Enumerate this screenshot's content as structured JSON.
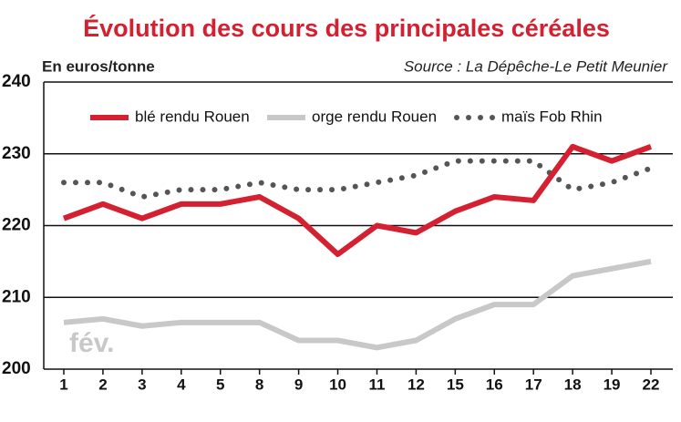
{
  "chart_data": {
    "type": "line",
    "title": "Évolution des cours des principales céréales",
    "y_label": "En euros/tonne",
    "source": "Source : La Dépêche-Le Petit Meunier",
    "annotation": "fév.",
    "categories": [
      "1",
      "2",
      "3",
      "4",
      "5",
      "8",
      "9",
      "10",
      "11",
      "12",
      "15",
      "16",
      "17",
      "18",
      "19",
      "22"
    ],
    "series": [
      {
        "name": "blé rendu Rouen",
        "color": "#d42030",
        "style": "solid",
        "values": [
          221,
          223,
          221,
          223,
          223,
          224,
          221,
          216,
          220,
          219,
          222,
          224,
          223.5,
          231,
          229,
          231
        ]
      },
      {
        "name": "orge rendu Rouen",
        "color": "#c8c8c8",
        "style": "solid",
        "values": [
          206.5,
          207,
          206,
          206.5,
          206.5,
          206.5,
          204,
          204,
          203,
          204,
          207,
          209,
          209,
          213,
          214,
          215
        ]
      },
      {
        "name": "maïs Fob Rhin",
        "color": "#555555",
        "style": "dotted",
        "values": [
          226,
          226,
          224,
          225,
          225,
          226,
          225,
          225,
          226,
          227,
          229,
          229,
          229,
          225,
          226,
          228
        ]
      }
    ],
    "ylim": [
      200,
      240
    ],
    "yticks": [
      200,
      210,
      220,
      230,
      240
    ],
    "grid": true
  }
}
